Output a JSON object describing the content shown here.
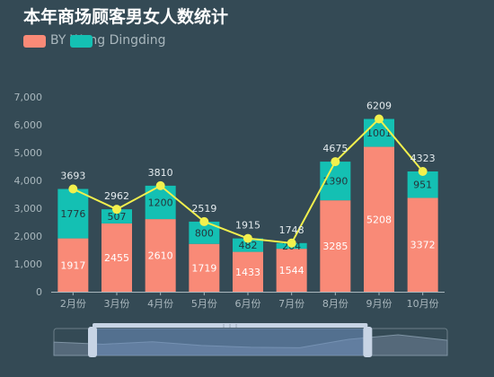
{
  "title": "本年商场顾客男女人数统计",
  "legend_label_a": "BY Wang Dingding",
  "colors": {
    "series_a": "#f98a77",
    "series_b": "#14c0b3",
    "line": "#f2f04d",
    "axis_text": "#a9b7bd",
    "gridline": "#4b5f69",
    "zoom_window": "#6d8fbf",
    "zoom_handle": "#c7d4e5"
  },
  "chart_data": {
    "type": "bar",
    "stacked": true,
    "categories": [
      "2月份",
      "3月份",
      "4月份",
      "5月份",
      "6月份",
      "7月份",
      "8月份",
      "9月份",
      "10月份"
    ],
    "series": [
      {
        "values": [
          1917,
          2455,
          2610,
          1719,
          1433,
          1544,
          3285,
          5208,
          3372
        ]
      },
      {
        "values": [
          1776,
          507,
          1200,
          800,
          482,
          204,
          1390,
          1001,
          951
        ]
      }
    ],
    "line_series": {
      "type": "line",
      "values": [
        3693,
        2962,
        3810,
        2519,
        1915,
        1748,
        4675,
        6209,
        4323
      ]
    },
    "y_ticks": [
      "0",
      "1,000",
      "2,000",
      "3,000",
      "4,000",
      "5,000",
      "6,000",
      "7,000"
    ],
    "ylim": [
      0,
      7000
    ],
    "grid": false,
    "legend_position": "top-left",
    "data_zoom": {
      "type": "slider",
      "start_fraction": 0.0,
      "end_fraction": 0.72
    }
  }
}
